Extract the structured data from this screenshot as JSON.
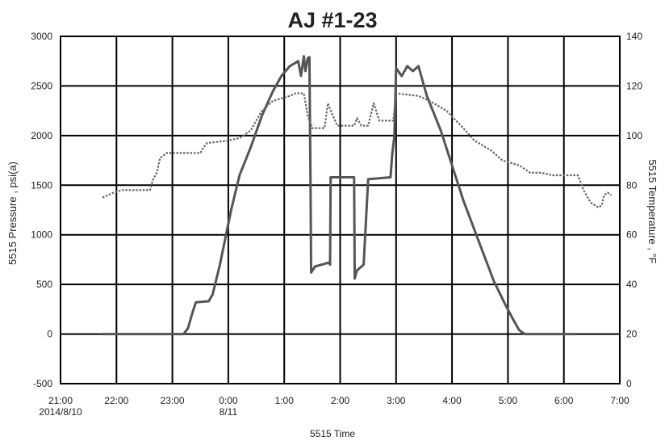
{
  "chart_data": {
    "type": "line",
    "title": "AJ #1-23",
    "xlabel": "5515 Time",
    "ylabel_left": "5515 Pressure , psi(a)",
    "ylabel_right": "5515 Temperature , °F",
    "x_unit": "hours after 21:00 on 2014/8/10",
    "x_ticks": [
      {
        "value": 0,
        "label": "21:00",
        "sublabel": "2014/8/10"
      },
      {
        "value": 1,
        "label": "22:00",
        "sublabel": ""
      },
      {
        "value": 2,
        "label": "23:00",
        "sublabel": ""
      },
      {
        "value": 3,
        "label": "0:00",
        "sublabel": "8/11"
      },
      {
        "value": 4,
        "label": "1:00",
        "sublabel": ""
      },
      {
        "value": 5,
        "label": "2:00",
        "sublabel": ""
      },
      {
        "value": 6,
        "label": "3:00",
        "sublabel": ""
      },
      {
        "value": 7,
        "label": "4:00",
        "sublabel": ""
      },
      {
        "value": 8,
        "label": "5:00",
        "sublabel": ""
      },
      {
        "value": 9,
        "label": "6:00",
        "sublabel": ""
      },
      {
        "value": 10,
        "label": "7:00",
        "sublabel": ""
      }
    ],
    "xlim": [
      0,
      10
    ],
    "ylim_left": [
      -500,
      3000
    ],
    "ylim_right": [
      0,
      140
    ],
    "y_ticks_left": [
      "-500",
      "0",
      "500",
      "1000",
      "1500",
      "2000",
      "2500",
      "3000"
    ],
    "y_ticks_right": [
      "0",
      "20",
      "40",
      "60",
      "80",
      "100",
      "120",
      "140"
    ],
    "grid": true,
    "series": [
      {
        "axis": "left",
        "style": "solid",
        "color": "#555555",
        "points": [
          [
            0.75,
            0
          ],
          [
            2.2,
            0
          ],
          [
            2.28,
            60
          ],
          [
            2.35,
            200
          ],
          [
            2.42,
            320
          ],
          [
            2.65,
            330
          ],
          [
            2.72,
            400
          ],
          [
            2.85,
            700
          ],
          [
            3.05,
            1250
          ],
          [
            3.2,
            1600
          ],
          [
            3.4,
            1880
          ],
          [
            3.6,
            2200
          ],
          [
            3.8,
            2450
          ],
          [
            3.95,
            2600
          ],
          [
            4.1,
            2700
          ],
          [
            4.25,
            2750
          ],
          [
            4.3,
            2600
          ],
          [
            4.35,
            2800
          ],
          [
            4.38,
            2650
          ],
          [
            4.42,
            2780
          ],
          [
            4.45,
            2790
          ],
          [
            4.47,
            1500
          ],
          [
            4.48,
            620
          ],
          [
            4.55,
            680
          ],
          [
            4.8,
            720
          ],
          [
            4.82,
            700
          ],
          [
            4.83,
            1580
          ],
          [
            5.25,
            1580
          ],
          [
            5.26,
            560
          ],
          [
            5.3,
            640
          ],
          [
            5.42,
            700
          ],
          [
            5.5,
            1560
          ],
          [
            5.9,
            1580
          ],
          [
            5.93,
            1800
          ],
          [
            5.97,
            2000
          ],
          [
            6.0,
            2680
          ],
          [
            6.1,
            2600
          ],
          [
            6.2,
            2700
          ],
          [
            6.3,
            2650
          ],
          [
            6.4,
            2700
          ],
          [
            6.55,
            2400
          ],
          [
            6.8,
            2050
          ],
          [
            7.0,
            1700
          ],
          [
            7.2,
            1350
          ],
          [
            7.5,
            900
          ],
          [
            7.75,
            530
          ],
          [
            7.95,
            300
          ],
          [
            8.1,
            140
          ],
          [
            8.2,
            40
          ],
          [
            8.3,
            0
          ],
          [
            9.2,
            0
          ]
        ]
      },
      {
        "axis": "right",
        "style": "dotted",
        "color": "#666666",
        "points": [
          [
            0.75,
            75
          ],
          [
            0.95,
            77
          ],
          [
            1.1,
            78
          ],
          [
            1.6,
            78
          ],
          [
            1.65,
            82
          ],
          [
            1.72,
            85
          ],
          [
            1.78,
            91
          ],
          [
            1.9,
            93
          ],
          [
            2.5,
            93
          ],
          [
            2.55,
            95
          ],
          [
            2.62,
            97
          ],
          [
            3.0,
            98
          ],
          [
            3.2,
            99
          ],
          [
            3.4,
            102
          ],
          [
            3.6,
            110
          ],
          [
            3.8,
            114
          ],
          [
            4.1,
            116
          ],
          [
            4.2,
            117
          ],
          [
            4.35,
            117
          ],
          [
            4.42,
            108
          ],
          [
            4.5,
            103
          ],
          [
            4.72,
            103
          ],
          [
            4.78,
            113
          ],
          [
            4.85,
            109
          ],
          [
            4.95,
            104
          ],
          [
            5.25,
            104
          ],
          [
            5.3,
            107
          ],
          [
            5.38,
            104
          ],
          [
            5.5,
            104
          ],
          [
            5.6,
            113
          ],
          [
            5.7,
            106
          ],
          [
            5.95,
            106
          ],
          [
            6.0,
            117
          ],
          [
            6.4,
            116
          ],
          [
            6.6,
            114
          ],
          [
            6.9,
            110
          ],
          [
            7.2,
            103
          ],
          [
            7.4,
            98
          ],
          [
            7.7,
            94
          ],
          [
            7.9,
            90
          ],
          [
            8.2,
            88
          ],
          [
            8.4,
            85
          ],
          [
            8.6,
            85
          ],
          [
            8.8,
            84
          ],
          [
            9.25,
            84
          ],
          [
            9.35,
            78
          ],
          [
            9.48,
            73
          ],
          [
            9.62,
            71
          ],
          [
            9.68,
            72
          ],
          [
            9.72,
            76
          ],
          [
            9.78,
            77
          ],
          [
            9.85,
            76
          ]
        ]
      }
    ]
  }
}
